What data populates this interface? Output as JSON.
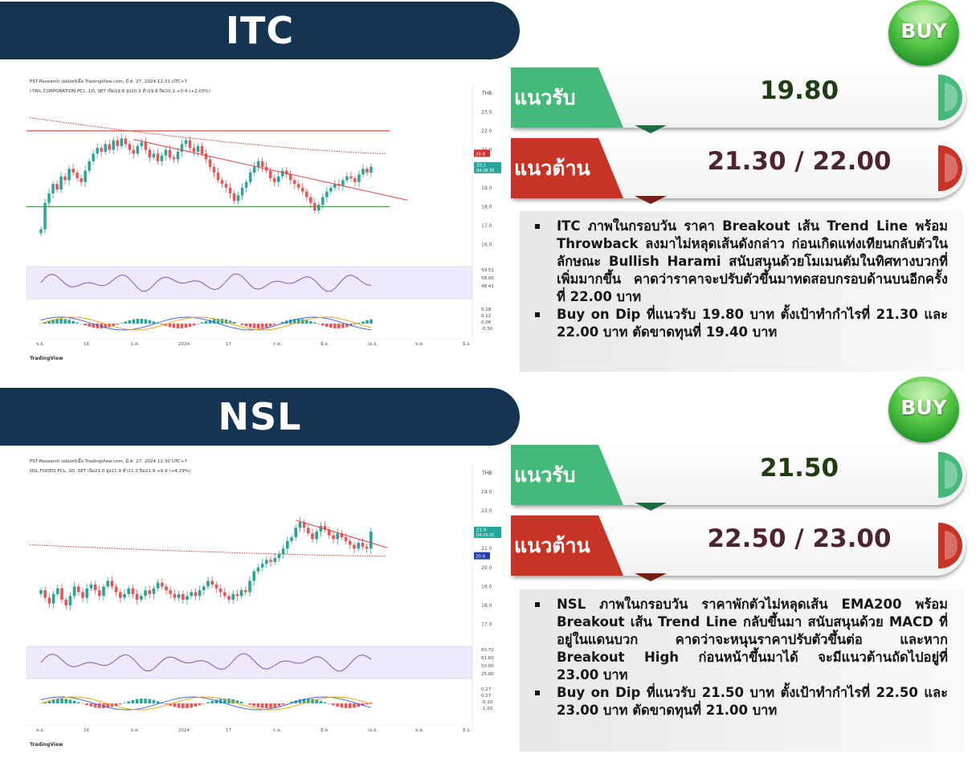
{
  "sections": [
    {
      "ticker": "ITC",
      "badge": "BUY",
      "support_label": "แนวรับ",
      "support_value": "19.80",
      "resistance_label": "แนวต้าน",
      "resistance_value": "21.30 / 22.00",
      "bullets": [
        "ITC ภาพในกรอบวัน ราคา Breakout เส้น Trend Line พร้อม Throwback ลงมาไม่หลุดเส้นดังกล่าว ก่อนเกิดแท่งเทียนกลับตัวในลักษณะ Bullish Harami สนับสนุนด้วยโมเมนตัมในทิศทางบวกที่เพิ่มมากขึ้น คาดว่าราคาจะปรับตัวขึ้นมาทดสอบกรอบด้านบนอีกครั้งที่ 22.00 บาท",
        "Buy on Dip ที่แนวรับ 19.80 บาท ตั้งเป้าทำกำไรที่ 21.30 และ 22.00 บาท ตัดขาดทุนที่ 19.40 บาท"
      ],
      "chart_data": {
        "type": "candlestick",
        "header": "PST-Research เผยแพร่เมื่อ TradingView.com, มี.ค. 27, 2024 12:31 UTC+7",
        "symbol_line": "I-TAIL CORPORATION PCL, 1D, SET  เปิด19.8  สูง20.3  ต่ำ19.8  ปิด20.1  +0.4 (+2.03%)",
        "currency": "THB",
        "price_ticks": [
          "23.0",
          "22.0",
          "21.0",
          "20.0",
          "19.0",
          "18.0",
          "17.0",
          "16.0"
        ],
        "ylim": [
          15.6,
          23.4
        ],
        "last_price_tag": "20.1",
        "last_time_tag": "04:28:35",
        "ema_tag": "20.8",
        "x_ticks": [
          "พ.ย.",
          "16",
          "ธ.ค.",
          "2024",
          "17",
          "ก.พ.",
          "มี.ค.",
          "เม.ย.",
          "พ.ค.",
          "มิ.ย."
        ],
        "close": [
          16.8,
          18.2,
          18.7,
          19.2,
          18.9,
          19.6,
          19.4,
          20.0,
          19.8,
          19.5,
          19.3,
          19.9,
          20.4,
          20.8,
          21.1,
          20.9,
          21.3,
          21.0,
          21.5,
          21.2,
          21.6,
          21.3,
          21.0,
          20.8,
          21.2,
          21.4,
          21.0,
          20.6,
          20.8,
          20.4,
          20.7,
          21.0,
          20.6,
          20.5,
          20.9,
          21.3,
          21.5,
          21.1,
          20.9,
          21.2,
          20.8,
          20.5,
          20.1,
          19.8,
          19.4,
          19.2,
          19.0,
          18.7,
          18.3,
          18.6,
          19.0,
          19.3,
          19.8,
          20.1,
          20.4,
          20.1,
          19.9,
          19.5,
          19.3,
          19.6,
          19.9,
          19.7,
          19.4,
          19.2,
          19.0,
          18.8,
          18.5,
          18.2,
          17.8,
          18.1,
          18.5,
          18.8,
          19.0,
          19.2,
          19.1,
          19.4,
          19.6,
          19.5,
          19.3,
          19.7,
          20.0,
          19.8,
          20.1
        ],
        "ema_start": 22.7,
        "ema_end": 20.8,
        "resistance_line": 22.0,
        "support_line": 18.0,
        "trendline": [
          [
            21.55,
            23
          ],
          [
            18.6,
            88
          ]
        ],
        "rsi_tags": [
          "59.51",
          "58.00",
          "48.41"
        ],
        "macd_tags": [
          "0.18",
          "0.12",
          "0.06",
          "-0.50"
        ],
        "footer": "TradingView"
      }
    },
    {
      "ticker": "NSL",
      "badge": "BUY",
      "support_label": "แนวรับ",
      "support_value": "21.50",
      "resistance_label": "แนวต้าน",
      "resistance_value": "22.50 / 23.00",
      "bullets": [
        "NSL ภาพในกรอบวัน ราคาพักตัวไม่หลุดเส้น EMA200 พร้อม Breakout เส้น Trend Line กลับขึ้นมา สนับสนุนด้วย MACD ที่อยู่ในแดนบวก คาดว่าจะหนุนราคาปรับตัวขึ้นต่อ และหาก Breakout High ก่อนหน้าขึ้นมาได้ จะมีแนวต้านถัดไปอยู่ที่ 23.00 บาท",
        "Buy on Dip ที่แนวรับ 21.50 บาท ตั้งเป้าทำกำไรที่ 22.50 และ 23.00 บาท ตัดขาดทุนที่ 21.00 บาท"
      ],
      "chart_data": {
        "type": "candlestick",
        "header": "PST-Research เผยแพร่เมื่อ TradingView.com, มี.ค. 27, 2024 12:30 UTC+7",
        "symbol_line": "NSL FOODS PCL, 1D, SET  เปิด21.0  สูง21.9  ต่ำ21.0  ปิด21.9  +0.9 (+4.29%)",
        "currency": "THB",
        "price_ticks": [
          "24.0",
          "23.0",
          "22.0",
          "21.0",
          "20.0",
          "19.0",
          "18.0",
          "17.0"
        ],
        "ylim": [
          16.6,
          24.4
        ],
        "last_price_tag": "21.9",
        "last_time_tag": "04:29:31",
        "ema_tag": "20.6",
        "x_ticks": [
          "พ.ย.",
          "16",
          "ธ.ค.",
          "2024",
          "17",
          "ก.พ.",
          "มี.ค.",
          "เม.ย.",
          "พ.ค.",
          "มิ.ย."
        ],
        "close": [
          18.8,
          18.4,
          18.1,
          18.6,
          18.9,
          18.3,
          18.0,
          18.5,
          19.0,
          18.7,
          18.4,
          18.9,
          19.1,
          18.8,
          18.5,
          19.0,
          19.3,
          19.0,
          18.7,
          18.4,
          18.6,
          18.9,
          18.6,
          18.3,
          18.5,
          18.8,
          18.6,
          18.9,
          19.2,
          19.0,
          18.8,
          18.6,
          18.4,
          18.6,
          18.3,
          18.5,
          18.7,
          18.5,
          18.8,
          19.0,
          19.3,
          19.1,
          18.9,
          18.7,
          18.5,
          18.3,
          18.6,
          18.5,
          18.8,
          18.7,
          19.3,
          19.8,
          20.0,
          20.2,
          20.4,
          20.3,
          20.5,
          20.7,
          21.0,
          21.4,
          21.6,
          22.1,
          22.4,
          22.1,
          21.8,
          21.5,
          21.9,
          22.2,
          22.0,
          21.7,
          21.5,
          21.8,
          21.6,
          21.4,
          21.2,
          21.0,
          21.3,
          21.1,
          21.0,
          21.9
        ],
        "ema_start": 21.2,
        "ema_end": 20.6,
        "trendline": [
          [
            22.5,
            61
          ],
          [
            21.3,
            80
          ]
        ],
        "rsi_tags": [
          "63.72",
          "61.60",
          "50.00",
          "25.00"
        ],
        "macd_tags": [
          "0.27",
          "0.17",
          "-0.10",
          "-1.00"
        ],
        "footer": "TradingView"
      }
    }
  ]
}
